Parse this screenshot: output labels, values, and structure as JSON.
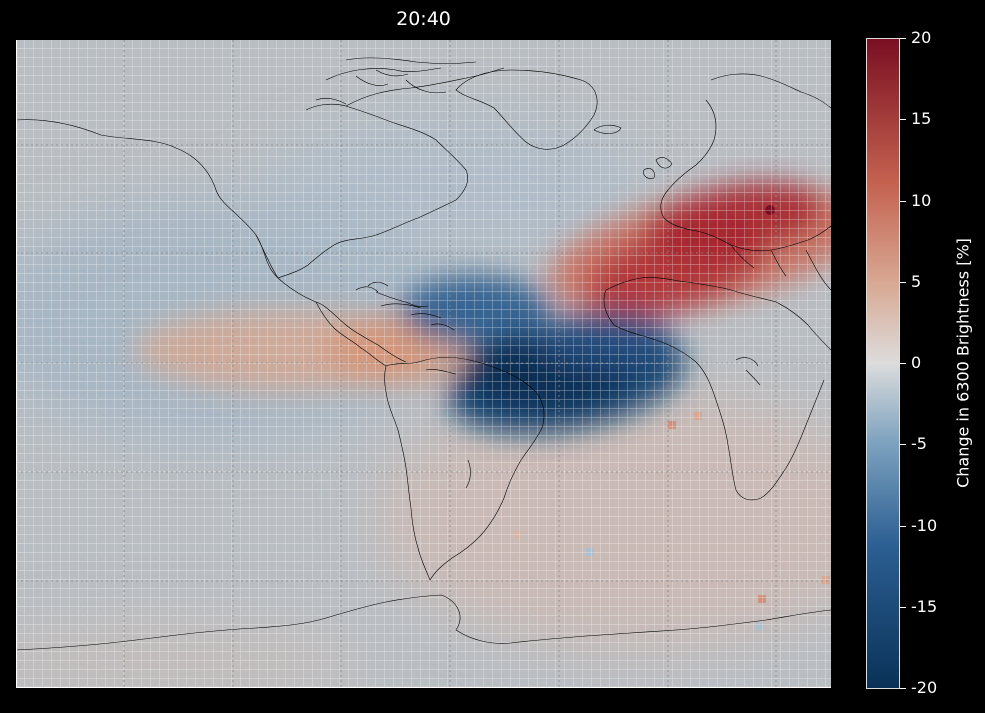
{
  "title": "20:40",
  "colorbar": {
    "label": "Change in 6300 Brightness [%]",
    "ticks": [
      {
        "value": 20,
        "label": "20"
      },
      {
        "value": 15,
        "label": "15"
      },
      {
        "value": 10,
        "label": "10"
      },
      {
        "value": 5,
        "label": "5"
      },
      {
        "value": 0,
        "label": "0"
      },
      {
        "value": -5,
        "label": "-5"
      },
      {
        "value": -10,
        "label": "-10"
      },
      {
        "value": -15,
        "label": "-15"
      },
      {
        "value": -20,
        "label": "-20"
      }
    ],
    "range": [
      -20,
      20
    ],
    "colors": {
      "neg": "#0a3258",
      "mid": "#dcdcdc",
      "pos": "#7a0f22"
    }
  },
  "map": {
    "background": "#b9bec3",
    "coastline_color": "#000000",
    "grid_color": "#ffffff"
  }
}
